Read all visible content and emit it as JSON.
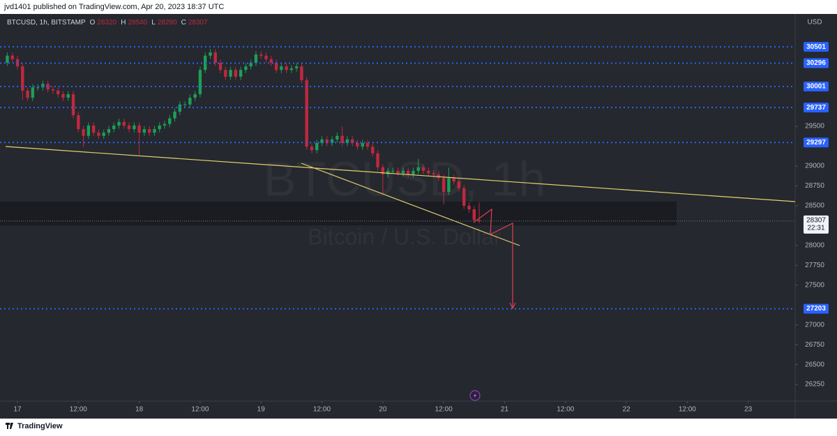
{
  "header": "jvd1401 published on TradingView.com, Apr 20, 2023 18:37 UTC",
  "footer": "TradingView",
  "chart_data": {
    "type": "candlestick",
    "symbol": "BTCUSD, 1h, BITSTAMP",
    "ohlc_labels": [
      "O",
      "H",
      "L",
      "C"
    ],
    "watermark": "BTCUSD, 1h",
    "watermark_subtitle": "Bitcoin / U.S. Dollar",
    "currency": "USD",
    "countdown": "22:31",
    "up_color": "#1e9e57",
    "down_color": "#c0283e",
    "level_color": "#2962ff",
    "levels": [
      30501,
      30296,
      30001,
      29737,
      29297,
      27203
    ],
    "x": [
      -2,
      -1,
      0,
      1,
      2,
      3,
      4,
      5,
      6,
      7,
      8,
      9,
      10,
      11,
      12,
      13,
      14,
      15,
      16,
      17,
      18,
      19,
      20,
      21,
      22,
      23,
      24,
      25,
      26,
      27,
      28,
      29,
      30,
      31,
      32,
      33,
      34,
      35,
      36,
      37,
      38,
      39,
      40,
      41,
      42,
      43,
      44,
      45,
      46,
      47,
      48,
      49,
      50,
      51,
      52,
      53,
      54,
      55,
      56,
      57,
      58,
      59,
      60,
      61,
      62,
      63,
      64,
      65,
      66,
      67,
      68,
      69,
      70,
      71,
      72,
      73,
      74,
      75,
      76,
      77,
      78,
      79,
      80,
      81,
      82,
      83,
      84,
      85,
      86,
      87,
      88,
      89,
      90,
      91
    ],
    "open": [
      30300,
      30390,
      30345,
      30255,
      29950,
      29860,
      29990,
      29990,
      30035,
      29965,
      29950,
      29905,
      29860,
      29905,
      29640,
      29465,
      29380,
      29510,
      29420,
      29380,
      29420,
      29465,
      29510,
      29555,
      29510,
      29465,
      29510,
      29420,
      29465,
      29420,
      29465,
      29510,
      29530,
      29600,
      29685,
      29775,
      29775,
      29860,
      29905,
      30210,
      30390,
      30430,
      30300,
      30210,
      30125,
      30210,
      30125,
      30210,
      30255,
      30300,
      30405,
      30390,
      30345,
      30300,
      30210,
      30255,
      30210,
      30230,
      30255,
      30080,
      29245,
      29200,
      29290,
      29335,
      29290,
      29335,
      29380,
      29290,
      29335,
      29290,
      29245,
      29290,
      29245,
      29160,
      28985,
      28895,
      28940,
      28940,
      28910,
      28940,
      28895,
      28940,
      28985,
      28940,
      28910,
      28895,
      28850,
      28675,
      28850,
      28805,
      28720,
      28500,
      28455,
      28320
    ],
    "high": [
      30430,
      30430,
      30385,
      30295,
      29990,
      30030,
      30030,
      30075,
      30075,
      30005,
      29990,
      29945,
      29945,
      29945,
      29680,
      29505,
      29550,
      29550,
      29460,
      29460,
      29505,
      29550,
      29595,
      29595,
      29550,
      29550,
      29550,
      29505,
      29505,
      29505,
      29550,
      29570,
      29640,
      29725,
      29815,
      29815,
      29900,
      29945,
      30250,
      30430,
      30475,
      30470,
      30340,
      30250,
      30250,
      30250,
      30250,
      30295,
      30340,
      30445,
      30445,
      30430,
      30385,
      30340,
      30295,
      30295,
      30270,
      30295,
      30295,
      30120,
      29285,
      29330,
      29375,
      29375,
      29375,
      29420,
      29500,
      29375,
      29375,
      29330,
      29330,
      29330,
      29285,
      29200,
      29025,
      28980,
      28980,
      28980,
      28980,
      28980,
      28980,
      29090,
      29025,
      28980,
      28950,
      28935,
      28890,
      28980,
      28890,
      28845,
      28760,
      28540,
      28495,
      28540
    ],
    "low": [
      30260,
      30305,
      30215,
      29830,
      29820,
      29820,
      29950,
      29950,
      29925,
      29910,
      29865,
      29820,
      29820,
      29600,
      29425,
      29240,
      29340,
      29380,
      29340,
      29340,
      29380,
      29425,
      29470,
      29470,
      29425,
      29425,
      29140,
      29380,
      29380,
      29380,
      29425,
      29470,
      29490,
      29560,
      29645,
      29735,
      29735,
      29820,
      29865,
      30170,
      30350,
      30260,
      30170,
      30085,
      30085,
      30085,
      30085,
      30170,
      30215,
      30260,
      30350,
      30305,
      30260,
      30170,
      30170,
      30170,
      30170,
      30190,
      30040,
      29205,
      29160,
      29160,
      29250,
      29250,
      29250,
      29295,
      29250,
      29250,
      29250,
      29205,
      29205,
      29205,
      29120,
      28945,
      28640,
      28855,
      28900,
      28870,
      28870,
      28855,
      28855,
      28900,
      28900,
      28870,
      28855,
      28810,
      28520,
      28635,
      28765,
      28680,
      28460,
      28415,
      28280,
      28280
    ],
    "close": [
      30390,
      30345,
      30255,
      29950,
      29860,
      29990,
      29990,
      30035,
      29965,
      29950,
      29905,
      29860,
      29905,
      29640,
      29465,
      29380,
      29510,
      29420,
      29380,
      29420,
      29465,
      29510,
      29555,
      29510,
      29465,
      29510,
      29420,
      29465,
      29420,
      29465,
      29510,
      29530,
      29600,
      29685,
      29775,
      29775,
      29860,
      29905,
      30210,
      30390,
      30430,
      30300,
      30210,
      30125,
      30210,
      30125,
      30210,
      30255,
      30300,
      30405,
      30390,
      30345,
      30300,
      30210,
      30255,
      30210,
      30230,
      30255,
      30080,
      29245,
      29200,
      29290,
      29335,
      29290,
      29335,
      29380,
      29290,
      29335,
      29290,
      29245,
      29290,
      29245,
      29160,
      28985,
      28895,
      28940,
      28940,
      28910,
      28940,
      28895,
      28940,
      28985,
      28940,
      28910,
      28895,
      28850,
      28675,
      28850,
      28805,
      28720,
      28500,
      28455,
      28320,
      28307
    ],
    "xlim": [
      -3.44,
      153.26
    ],
    "xticks": [
      {
        "value": 0,
        "label": "17"
      },
      {
        "value": 12,
        "label": "12:00"
      },
      {
        "value": 24,
        "label": "18"
      },
      {
        "value": 36,
        "label": "12:00"
      },
      {
        "value": 48,
        "label": "19"
      },
      {
        "value": 60,
        "label": "12:00"
      },
      {
        "value": 72,
        "label": "20"
      },
      {
        "value": 84,
        "label": "12:00"
      },
      {
        "value": 96,
        "label": "21"
      },
      {
        "value": 108,
        "label": "12:00"
      },
      {
        "value": 120,
        "label": "22"
      },
      {
        "value": 132,
        "label": "12:00"
      },
      {
        "value": 144,
        "label": "23"
      }
    ],
    "ylim": [
      26040,
      30915
    ],
    "yticks": [
      26250,
      26500,
      26750,
      27000,
      27500,
      27750,
      28000,
      28500,
      28750,
      29000,
      29500
    ]
  }
}
